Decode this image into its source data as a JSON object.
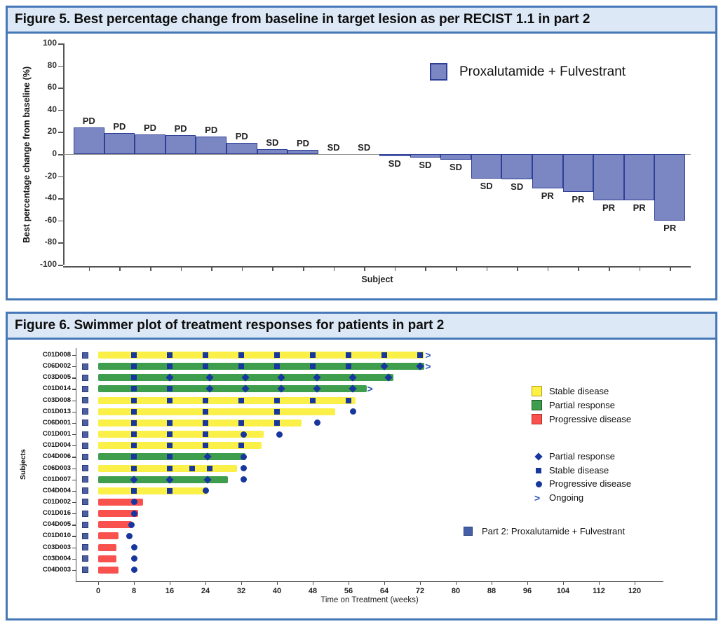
{
  "chart_data": [
    {
      "type": "bar",
      "title": "Figure 5. Best percentage change from baseline in target lesion as per RECIST 1.1 in part 2",
      "xlabel": "Subject",
      "ylabel": "Best percentage change from baseline (%)",
      "ylim": [
        -100,
        100
      ],
      "yticks": [
        100,
        80,
        60,
        40,
        20,
        0,
        -20,
        -40,
        -60,
        -80,
        -100
      ],
      "grid": false,
      "legend_position": "top-right",
      "series": [
        {
          "name": "Proxalutamide + Fulvestrant",
          "color": "#7b87c3",
          "border_color": "#2e3f96"
        }
      ],
      "points": [
        {
          "label": "PD",
          "value": 24
        },
        {
          "label": "PD",
          "value": 19
        },
        {
          "label": "PD",
          "value": 18
        },
        {
          "label": "PD",
          "value": 17
        },
        {
          "label": "PD",
          "value": 16
        },
        {
          "label": "PD",
          "value": 10
        },
        {
          "label": "SD",
          "value": 4.5
        },
        {
          "label": "PD",
          "value": 4
        },
        {
          "label": "SD",
          "value": 0
        },
        {
          "label": "SD",
          "value": 0
        },
        {
          "label": "SD",
          "value": -2
        },
        {
          "label": "SD",
          "value": -3
        },
        {
          "label": "SD",
          "value": -5
        },
        {
          "label": "SD",
          "value": -22
        },
        {
          "label": "SD",
          "value": -23
        },
        {
          "label": "PR",
          "value": -31
        },
        {
          "label": "PR",
          "value": -34
        },
        {
          "label": "PR",
          "value": -42
        },
        {
          "label": "PR",
          "value": -42
        },
        {
          "label": "PR",
          "value": -60
        }
      ]
    },
    {
      "type": "swimmer",
      "title": "Figure 6. Swimmer plot of treatment responses for patients in part 2",
      "xlabel": "Time on Treatment (weeks)",
      "ylabel": "Subjects",
      "xticks": [
        0,
        8,
        16,
        24,
        32,
        40,
        48,
        56,
        64,
        72,
        80,
        88,
        96,
        104,
        112,
        120
      ],
      "colors": {
        "stable": "#fbf048",
        "partial": "#3f9e4d",
        "progressive": "#f9514e",
        "marker": "#17379e",
        "part2_square": "#4d5f9f",
        "ongoing_arrow": "#2a52b8"
      },
      "legend_colors": [
        {
          "label": "Stable disease",
          "key": "stable"
        },
        {
          "label": "Partial response",
          "key": "partial"
        },
        {
          "label": "Progressive disease",
          "key": "progressive"
        }
      ],
      "legend_markers": [
        {
          "label": "Partial response",
          "marker": "diamond"
        },
        {
          "label": "Stable disease",
          "marker": "square"
        },
        {
          "label": "Progressive disease",
          "marker": "circle"
        },
        {
          "label": "Ongoing",
          "marker": "arrow"
        }
      ],
      "part_legend": "Part 2: Proxalutamide + Fulvestrant",
      "rows": [
        {
          "subject": "C01D008",
          "response": "stable",
          "weeks": 73,
          "ongoing": true,
          "squares": [
            8,
            16,
            24,
            32,
            40,
            48,
            56,
            64,
            72
          ],
          "diamonds": [],
          "circles": []
        },
        {
          "subject": "C06D002",
          "response": "partial",
          "weeks": 73,
          "ongoing": true,
          "squares": [
            8,
            16,
            24,
            32,
            40,
            48,
            56
          ],
          "diamonds": [
            64,
            72
          ],
          "circles": []
        },
        {
          "subject": "C03D005",
          "response": "partial",
          "weeks": 66,
          "ongoing": false,
          "squares": [
            8
          ],
          "diamonds": [
            16,
            25,
            33,
            41,
            49,
            57,
            65
          ],
          "circles": []
        },
        {
          "subject": "C01D014",
          "response": "partial",
          "weeks": 60,
          "ongoing": true,
          "squares": [
            8,
            16
          ],
          "diamonds": [
            25,
            33,
            41,
            49,
            57
          ],
          "circles": []
        },
        {
          "subject": "C03D008",
          "response": "stable",
          "weeks": 57.5,
          "ongoing": false,
          "squares": [
            8,
            16,
            24,
            32,
            40,
            48,
            56
          ],
          "diamonds": [],
          "circles": []
        },
        {
          "subject": "C01D013",
          "response": "stable",
          "weeks": 53,
          "ongoing": false,
          "squares": [
            8,
            24,
            40
          ],
          "diamonds": [],
          "circles": [
            57
          ]
        },
        {
          "subject": "C06D001",
          "response": "stable",
          "weeks": 45.5,
          "ongoing": false,
          "squares": [
            8,
            16,
            24,
            32,
            40
          ],
          "diamonds": [],
          "circles": [
            49
          ]
        },
        {
          "subject": "C01D001",
          "response": "stable",
          "weeks": 37,
          "ongoing": false,
          "squares": [
            8,
            16,
            24
          ],
          "diamonds": [],
          "circles": [
            32.5,
            40.5
          ]
        },
        {
          "subject": "C01D004",
          "response": "stable",
          "weeks": 36.5,
          "ongoing": false,
          "squares": [
            8,
            16,
            24,
            32
          ],
          "diamonds": [],
          "circles": []
        },
        {
          "subject": "C04D006",
          "response": "partial",
          "weeks": 33,
          "ongoing": false,
          "squares": [
            8,
            16
          ],
          "diamonds": [
            24.5
          ],
          "circles": [
            32.5
          ]
        },
        {
          "subject": "C06D003",
          "response": "stable",
          "weeks": 31,
          "ongoing": false,
          "squares": [
            8,
            16,
            21,
            25
          ],
          "diamonds": [],
          "circles": [
            32.5
          ]
        },
        {
          "subject": "C01D007",
          "response": "partial",
          "weeks": 29,
          "ongoing": false,
          "squares": [],
          "diamonds": [
            8,
            16,
            24.5
          ],
          "circles": [
            32.5
          ]
        },
        {
          "subject": "C04D004",
          "response": "stable",
          "weeks": 24.5,
          "ongoing": false,
          "squares": [
            8,
            16
          ],
          "diamonds": [],
          "circles": [
            24
          ]
        },
        {
          "subject": "C01D002",
          "response": "progressive",
          "weeks": 10,
          "ongoing": false,
          "squares": [],
          "diamonds": [],
          "circles": [
            8
          ]
        },
        {
          "subject": "C01D016",
          "response": "progressive",
          "weeks": 9,
          "ongoing": false,
          "squares": [],
          "diamonds": [],
          "circles": [
            8
          ]
        },
        {
          "subject": "C04D005",
          "response": "progressive",
          "weeks": 7.5,
          "ongoing": false,
          "squares": [],
          "diamonds": [],
          "circles": [
            7.5
          ]
        },
        {
          "subject": "C01D010",
          "response": "progressive",
          "weeks": 4.5,
          "ongoing": false,
          "squares": [],
          "diamonds": [],
          "circles": [
            7
          ]
        },
        {
          "subject": "C03D003",
          "response": "progressive",
          "weeks": 4,
          "ongoing": false,
          "squares": [],
          "diamonds": [],
          "circles": [
            8
          ]
        },
        {
          "subject": "C03D004",
          "response": "progressive",
          "weeks": 4,
          "ongoing": false,
          "squares": [],
          "diamonds": [],
          "circles": [
            8
          ]
        },
        {
          "subject": "C04D003",
          "response": "progressive",
          "weeks": 4.5,
          "ongoing": false,
          "squares": [],
          "diamonds": [],
          "circles": [
            8
          ]
        }
      ]
    }
  ]
}
